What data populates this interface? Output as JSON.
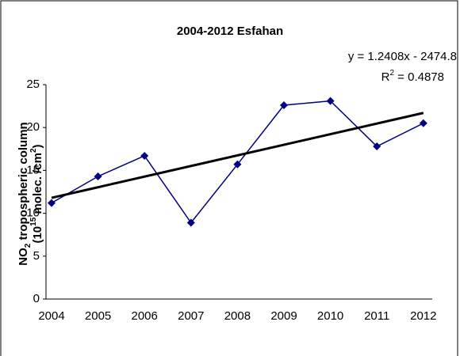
{
  "chart_data": {
    "type": "line",
    "title": "2004-2012  Esfahan",
    "ylabel": {
      "line1": [
        "NO",
        "2",
        " tropospheric column"
      ],
      "line2": [
        "(10",
        "15",
        " molec. /cm",
        "2",
        ")"
      ]
    },
    "equation": "y = 1.2408x - 2474.8",
    "r_squared": [
      "R",
      "2",
      " = 0.4878"
    ],
    "categories": [
      "2004",
      "2005",
      "2006",
      "2007",
      "2008",
      "2009",
      "2010",
      "2011",
      "2012"
    ],
    "series": [
      {
        "color": "#000080",
        "values": [
          11.2,
          14.3,
          16.7,
          8.9,
          15.7,
          22.6,
          23.1,
          17.8,
          20.5
        ]
      }
    ],
    "trendline": {
      "color": "#000000",
      "values": [
        11.8,
        21.7
      ]
    },
    "ylim": [
      0,
      25
    ],
    "yticks": [
      0,
      5,
      10,
      15,
      20,
      25
    ],
    "grid": false
  }
}
